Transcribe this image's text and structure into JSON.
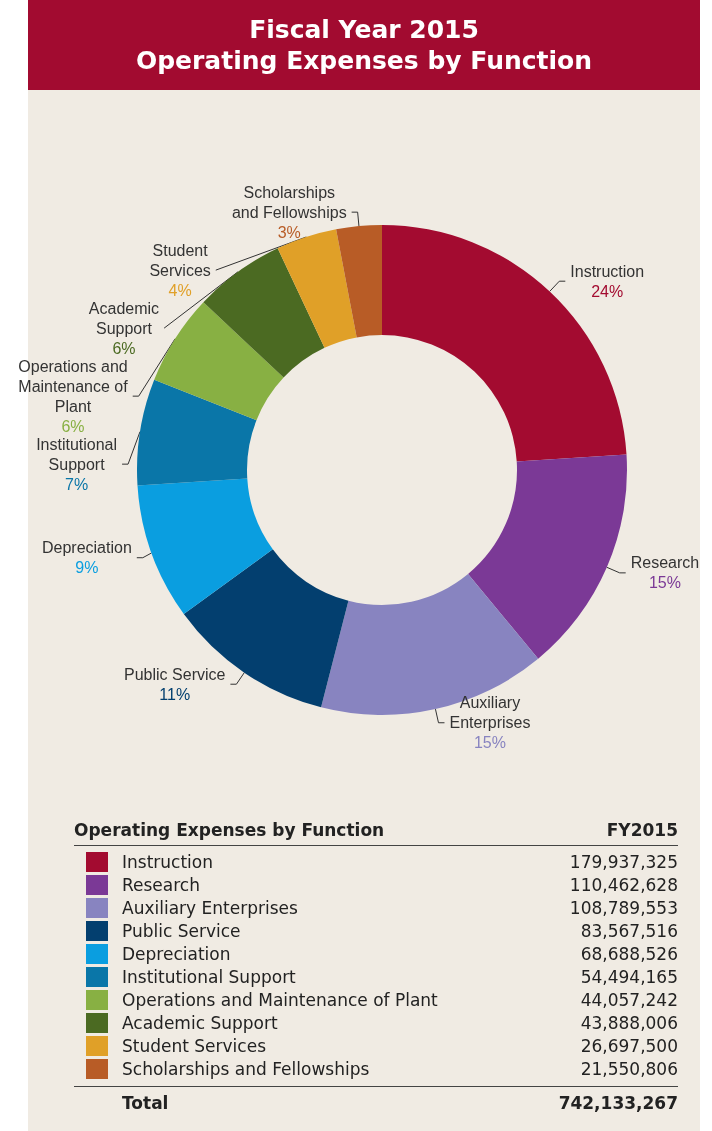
{
  "chart_data": [
    {
      "type": "donut",
      "title": "Fiscal Year 2015",
      "subtitle": "Operating Expenses by Function",
      "categories": [
        "Instruction",
        "Research",
        "Auxiliary Enterprises",
        "Public Service",
        "Depreciation",
        "Institutional Support",
        "Operations and Maintenance of Plant",
        "Academic Support",
        "Student Services",
        "Scholarships and Fellowships"
      ],
      "values": [
        24,
        15,
        15,
        11,
        9,
        7,
        6,
        6,
        4,
        3
      ],
      "colors": [
        "#a30b30",
        "#7b3996",
        "#8884c0",
        "#033f6f",
        "#0a9ee0",
        "#0a76a8",
        "#88b043",
        "#4b6a22",
        "#e0a028",
        "#b85c26"
      ],
      "value_labels": [
        "24%",
        "15%",
        "15%",
        "11%",
        "9%",
        "7%",
        "6%",
        "6%",
        "4%",
        "3%"
      ]
    },
    {
      "type": "other",
      "title": "Operating Expenses by Function",
      "categories": [
        "Instruction",
        "Research",
        "Auxiliary Enterprises",
        "Public Service",
        "Depreciation",
        "Institutional Support",
        "Operations and Maintenance of Plant",
        "Academic Support",
        "Student Services",
        "Scholarships and Fellowships"
      ],
      "colors": [
        "#a30b30",
        "#7b3996",
        "#8884c0",
        "#033f6f",
        "#0a9ee0",
        "#0a76a8",
        "#88b043",
        "#4b6a22",
        "#e0a028",
        "#b85c26"
      ],
      "values": [
        179937325,
        110462628,
        108789553,
        83567516,
        68688526,
        54494165,
        44057242,
        43888006,
        26697500,
        21550806
      ],
      "value_labels": [
        "179,937,325",
        "110,462,628",
        "108,789,553",
        "83,567,516",
        "68,688,526",
        "54,494,165",
        "44,057,242",
        "43,888,006",
        "26,697,500",
        "21,550,806"
      ],
      "annotations": [
        "FY2015",
        "Total"
      ],
      "totals": [
        "742,133,267"
      ]
    }
  ]
}
